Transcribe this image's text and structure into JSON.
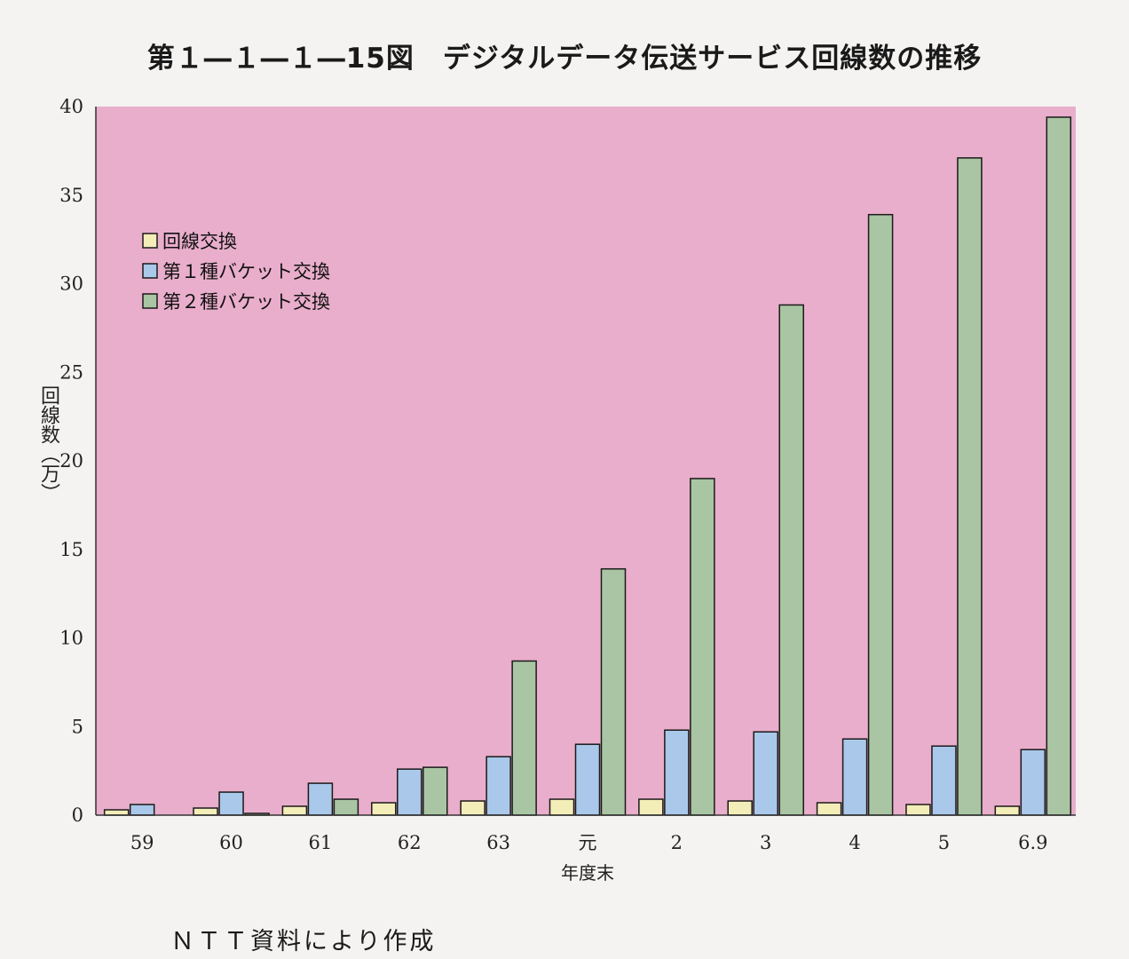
{
  "chart_data": {
    "type": "bar",
    "title": "第１―１―１―15図　デジタルデータ伝送サービス回線数の推移",
    "xlabel": "年度末",
    "ylabel": "回線数（万）",
    "ylim": [
      0,
      40
    ],
    "yticks": [
      0,
      5,
      10,
      15,
      20,
      25,
      30,
      35,
      40
    ],
    "grid": false,
    "legend_position": "top-left",
    "categories": [
      "59",
      "60",
      "61",
      "62",
      "63",
      "元",
      "2",
      "3",
      "4",
      "5",
      "6.9"
    ],
    "series": [
      {
        "name": "回線交換",
        "color": "#f3edb8",
        "values": [
          0.3,
          0.4,
          0.5,
          0.7,
          0.8,
          0.9,
          0.9,
          0.8,
          0.7,
          0.6,
          0.5
        ]
      },
      {
        "name": "第１種バケット交換",
        "color": "#a9c8ea",
        "values": [
          0.6,
          1.3,
          1.8,
          2.6,
          3.3,
          4.0,
          4.8,
          4.7,
          4.3,
          3.9,
          3.7
        ]
      },
      {
        "name": "第２種バケット交換",
        "color": "#a9c5a3",
        "values": [
          0,
          0.1,
          0.9,
          2.7,
          8.7,
          13.9,
          19.0,
          28.8,
          33.9,
          37.1,
          39.4
        ]
      }
    ],
    "plot_background": "#e9aecb"
  },
  "source_note": "ＮＴＴ資料により作成"
}
